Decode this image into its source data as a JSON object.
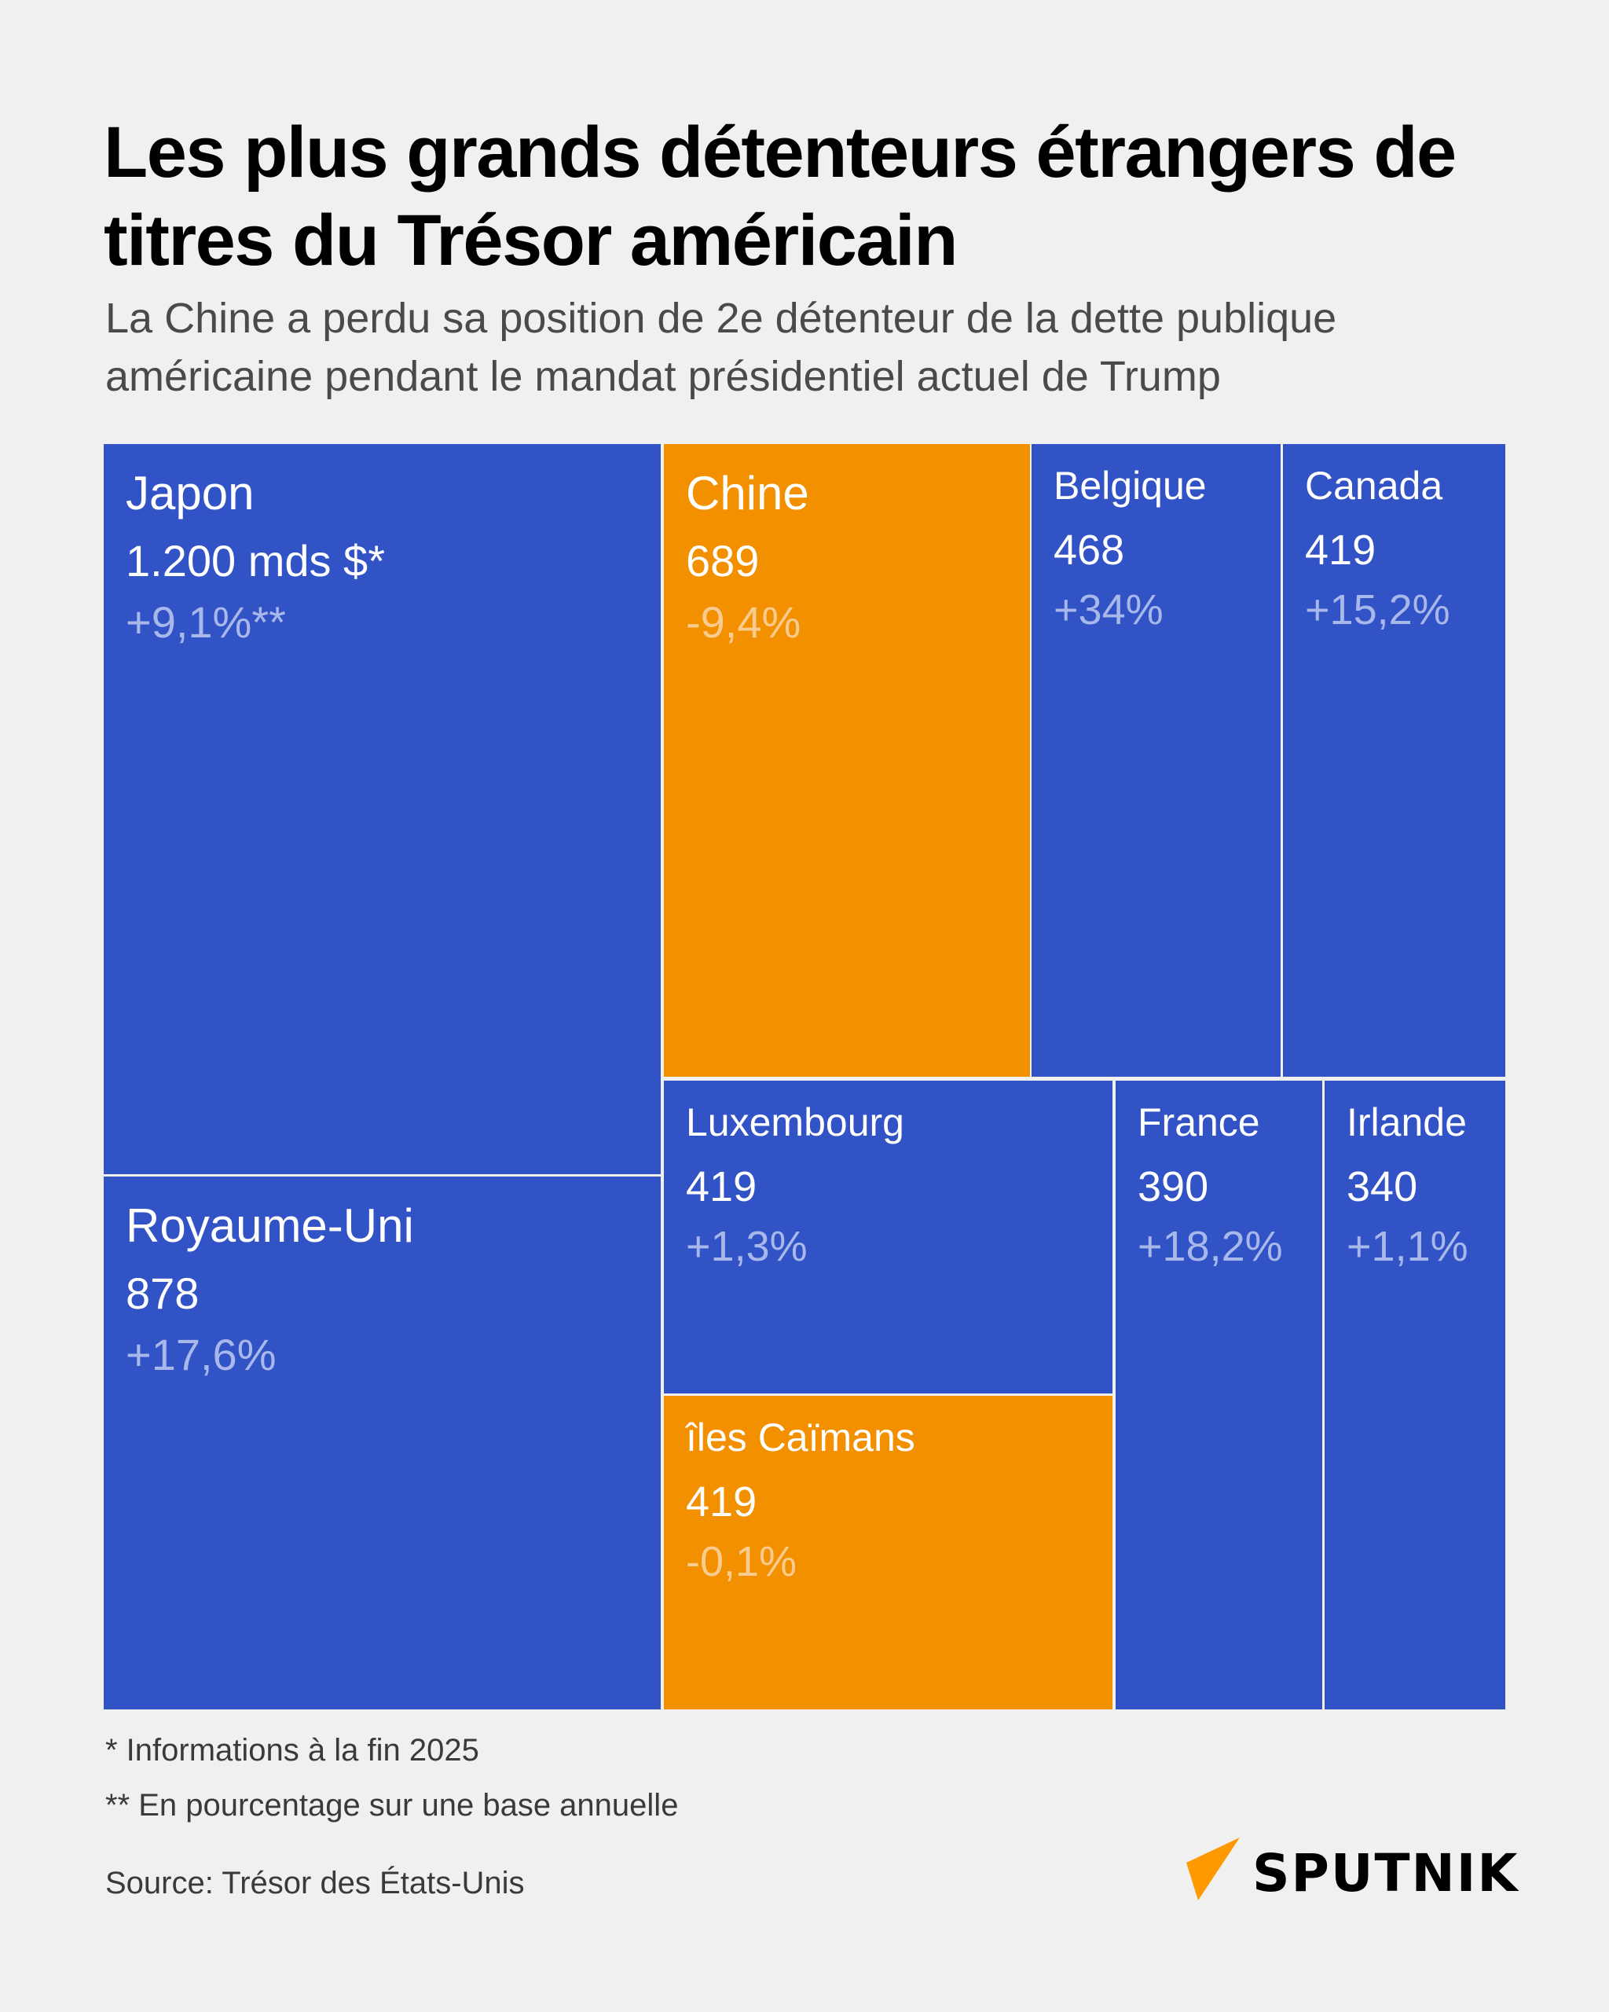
{
  "title": "Les plus grands détenteurs étrangers de titres du Trésor américain",
  "subtitle": "La Chine a perdu sa position de 2e détenteur de la dette publique américaine pendant le mandat présidentiel actuel de Trump",
  "colors": {
    "background": "#f0f0f0",
    "increase": "#3253c5",
    "decrease": "#f39000",
    "increase_change_text": "#a9b8ea",
    "decrease_change_text": "#f8cc8f",
    "logo_accent": "#ff9900"
  },
  "chart_data": {
    "type": "treemap",
    "unit": "mds $",
    "items": [
      {
        "name": "Japon",
        "value_label": "1.200 mds $*",
        "value": 1200,
        "change": "+9,1%**",
        "direction": "increase"
      },
      {
        "name": "Royaume-Uni",
        "value_label": "878",
        "value": 878,
        "change": "+17,6%",
        "direction": "increase"
      },
      {
        "name": "Chine",
        "value_label": "689",
        "value": 689,
        "change": "-9,4%",
        "direction": "decrease"
      },
      {
        "name": "Belgique",
        "value_label": "468",
        "value": 468,
        "change": "+34%",
        "direction": "increase"
      },
      {
        "name": "Canada",
        "value_label": "419",
        "value": 419,
        "change": "+15,2%",
        "direction": "increase"
      },
      {
        "name": "Luxembourg",
        "value_label": "419",
        "value": 419,
        "change": "+1,3%",
        "direction": "increase"
      },
      {
        "name": "îles Caïmans",
        "value_label": "419",
        "value": 419,
        "change": "-0,1%",
        "direction": "decrease"
      },
      {
        "name": "France",
        "value_label": "390",
        "value": 390,
        "change": "+18,2%",
        "direction": "increase"
      },
      {
        "name": "Irlande",
        "value_label": "340",
        "value": 340,
        "change": "+1,1%",
        "direction": "increase"
      }
    ]
  },
  "footnotes": [
    "* Informations à la fin 2025",
    "** En pourcentage sur une base annuelle"
  ],
  "source": "Source: Trésor des États-Unis",
  "logo": {
    "text": "SPUTNIK"
  }
}
